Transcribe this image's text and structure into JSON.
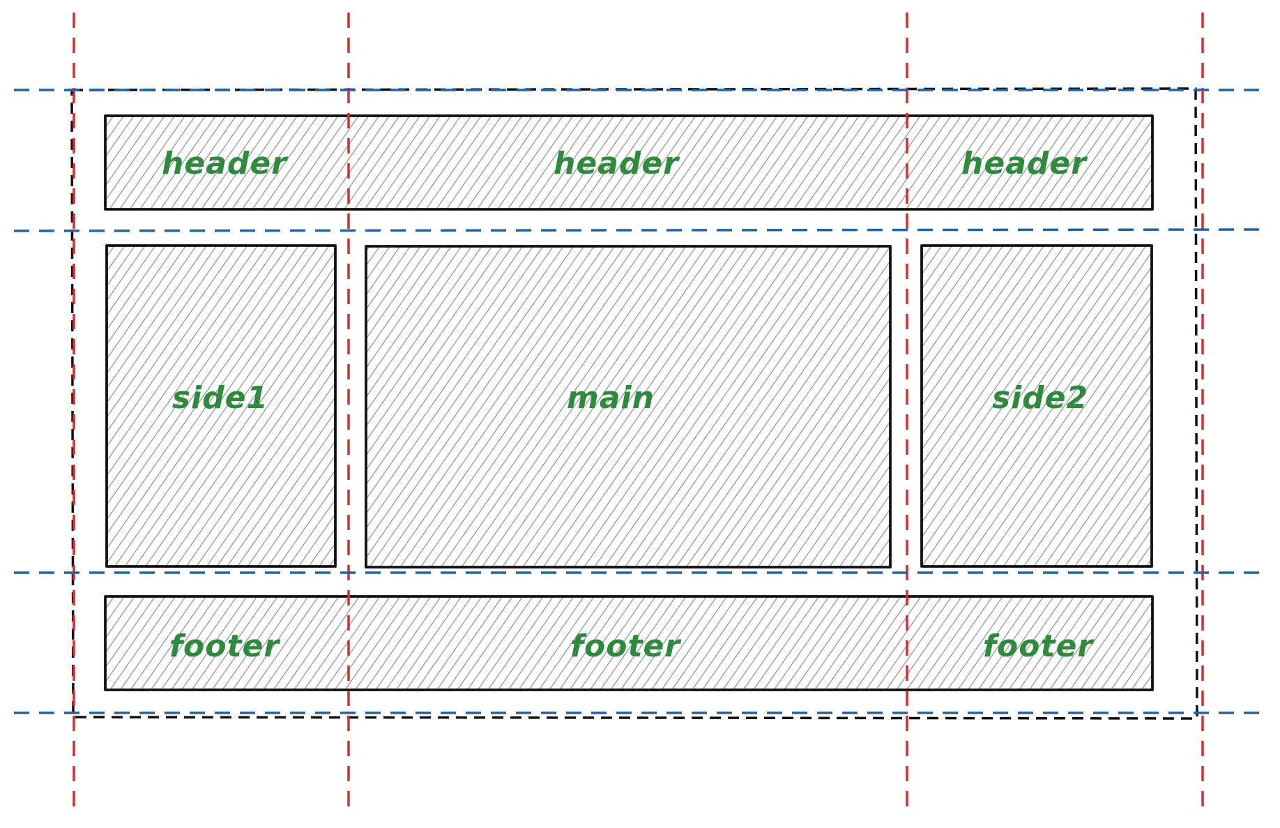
{
  "diagram": {
    "areas": {
      "header": [
        "header",
        "header",
        "header"
      ],
      "side1": "side1",
      "main": "main",
      "side2": "side2",
      "footer": [
        "footer",
        "footer",
        "footer"
      ]
    },
    "colors": {
      "column_lines": "#d32f2f",
      "row_lines": "#1e63a8",
      "labels": "#2e8b3d",
      "hatch": "#8a8e94",
      "box_stroke": "#111111"
    }
  }
}
